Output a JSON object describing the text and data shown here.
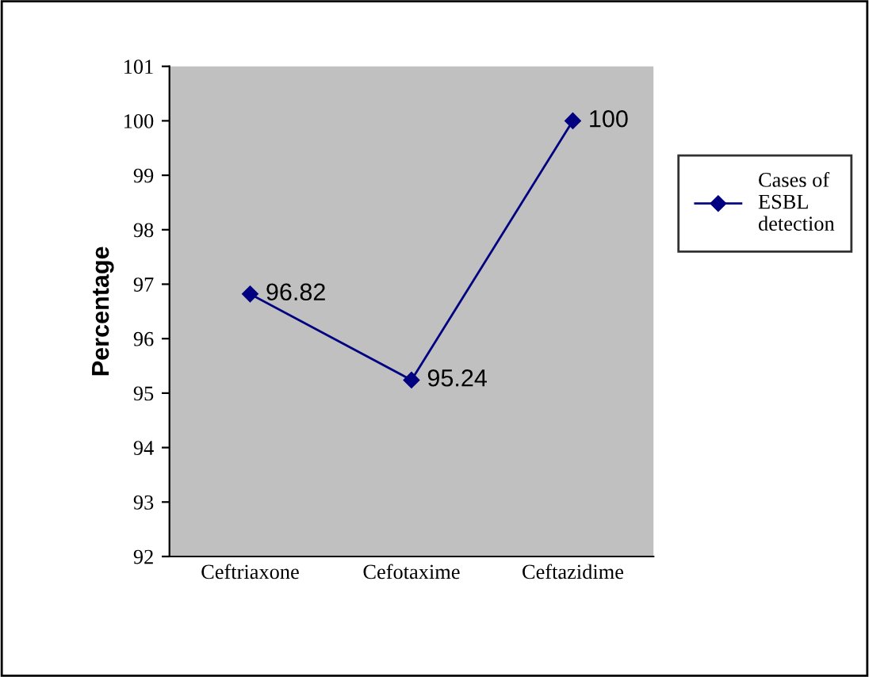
{
  "chart_data": {
    "type": "line",
    "ylabel": "Percentage",
    "categories": [
      "Ceftriaxone",
      "Cefotaxime",
      "Ceftazidime"
    ],
    "series": [
      {
        "name": "Cases of\nESBL\ndetection",
        "color": "#000080",
        "values": [
          96.82,
          95.24,
          100
        ]
      }
    ],
    "ylim": [
      92,
      101
    ],
    "yticks": [
      92,
      93,
      94,
      95,
      96,
      97,
      98,
      99,
      100,
      101
    ],
    "data_labels": true,
    "legend": "right",
    "marker": "diamond",
    "line_style": "solid",
    "grid": false
  }
}
